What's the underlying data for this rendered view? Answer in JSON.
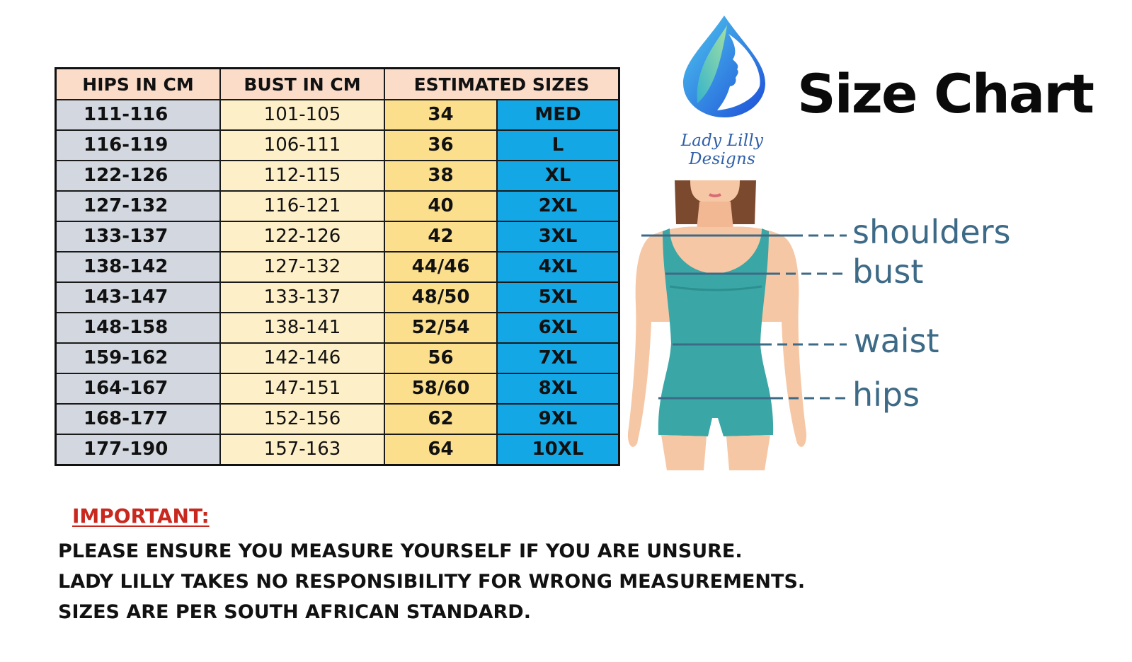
{
  "title": "Size Chart",
  "brand": "Lady Lilly Designs",
  "table": {
    "headers": [
      "HIPS IN CM",
      "BUST IN CM",
      "ESTIMATED SIZES"
    ],
    "rows": [
      {
        "hips": "111-116",
        "bust": "101-105",
        "number": "34",
        "size": "MED"
      },
      {
        "hips": "116-119",
        "bust": "106-111",
        "number": "36",
        "size": "L"
      },
      {
        "hips": "122-126",
        "bust": "112-115",
        "number": "38",
        "size": "XL"
      },
      {
        "hips": "127-132",
        "bust": "116-121",
        "number": "40",
        "size": "2XL"
      },
      {
        "hips": "133-137",
        "bust": "122-126",
        "number": "42",
        "size": "3XL"
      },
      {
        "hips": "138-142",
        "bust": "127-132",
        "number": "44/46",
        "size": "4XL"
      },
      {
        "hips": "143-147",
        "bust": "133-137",
        "number": "48/50",
        "size": "5XL"
      },
      {
        "hips": "148-158",
        "bust": "138-141",
        "number": "52/54",
        "size": "6XL"
      },
      {
        "hips": "159-162",
        "bust": "142-146",
        "number": "56",
        "size": "7XL"
      },
      {
        "hips": "164-167",
        "bust": "147-151",
        "number": "58/60",
        "size": "8XL"
      },
      {
        "hips": "168-177",
        "bust": "152-156",
        "number": "62",
        "size": "9XL"
      },
      {
        "hips": "177-190",
        "bust": "157-163",
        "number": "64",
        "size": "10XL"
      }
    ]
  },
  "measurements": {
    "shoulders": "shoulders",
    "bust": "bust",
    "waist": "waist",
    "hips": "hips"
  },
  "notes": {
    "heading": "IMPORTANT:",
    "lines": [
      "PLEASE ENSURE YOU MEASURE YOURSELF IF YOU ARE UNSURE.",
      "LADY LILLY TAKES NO RESPONSIBILITY FOR WRONG MEASUREMENTS.",
      "SIZES ARE PER SOUTH AFRICAN STANDARD."
    ]
  },
  "colors": {
    "header_bg": "#fbdcc9",
    "hips_col": "#d3d8e0",
    "bust_col": "#fdf0c9",
    "number_col": "#fbdf8c",
    "size_col": "#14a7e6",
    "important": "#c8281e",
    "measure_label": "#3d6a86"
  }
}
